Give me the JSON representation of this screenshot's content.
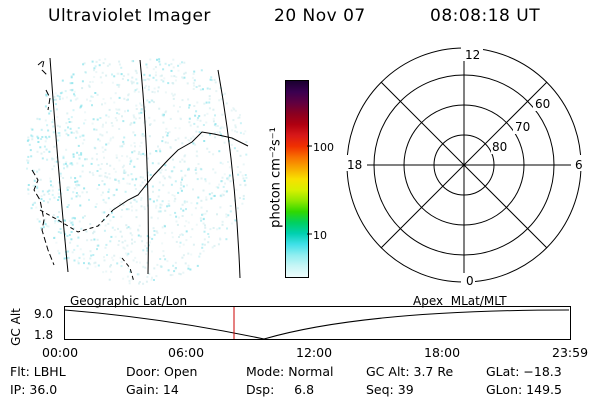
{
  "header": {
    "instrument": "Ultraviolet Imager",
    "date": "20 Nov 07",
    "time": "08:08:18 UT"
  },
  "colorbar": {
    "unit_label": "photon cm⁻²s⁻¹",
    "ticks": [
      "100",
      "10"
    ],
    "colors": [
      "#1a0030",
      "#3a0050",
      "#600040",
      "#8a0020",
      "#b00010",
      "#d81818",
      "#f03000",
      "#f87000",
      "#f8a800",
      "#f8e000",
      "#d8f000",
      "#90e800",
      "#30d800",
      "#00d060",
      "#00d0b0",
      "#40e0e8",
      "#90eef0",
      "#c8f6f6",
      "#eefcfc"
    ]
  },
  "polar_plot": {
    "lat_rings": [
      "60",
      "70",
      "80"
    ],
    "mlt_labels": {
      "top": "12",
      "left": "18",
      "right": "6",
      "bottom": "0"
    }
  },
  "timeline": {
    "left_label": "Geographic Lat/Lon",
    "right_label": "Apex  MLat/MLT",
    "axis_label": "GC Alt",
    "y_ticks": [
      "9.0",
      "1.8"
    ],
    "x_ticks": [
      "00:00",
      "06:00",
      "12:00",
      "18:00",
      "23:59"
    ],
    "marker_time": "08:08"
  },
  "status": [
    [
      "Flt: LBHL",
      "Door: Open",
      "Mode: Normal",
      "GC Alt: 3.7 Re",
      "GLat: −18.3"
    ],
    [
      "IP: 36.0",
      "Gain: 14",
      "Dsp:     6.8",
      "Seq: 39",
      "GLon: 149.5"
    ]
  ]
}
